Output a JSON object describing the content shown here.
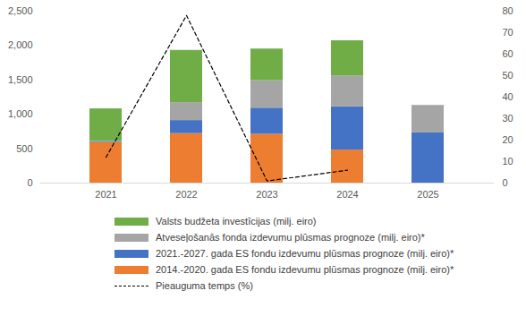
{
  "chart_data": {
    "type": "bar",
    "stacked": true,
    "grid": false,
    "categories": [
      "2021",
      "2022",
      "2023",
      "2024",
      "2025"
    ],
    "ylim": [
      0,
      2500
    ],
    "yticks": [
      0,
      500,
      {
        "value": 1000,
        "label": "1,000"
      },
      {
        "value": 1500,
        "label": "1,500"
      },
      {
        "value": 2000,
        "label": "2,000"
      },
      {
        "value": 2500,
        "label": "2,500"
      }
    ],
    "y2lim": [
      0,
      80
    ],
    "y2ticks": [
      0,
      10,
      20,
      30,
      40,
      50,
      60,
      70,
      80
    ],
    "series": [
      {
        "name": "2014.-2020. gada ES fondu izdevumu plūsmas prognoze (milj. eiro)*",
        "type": "bar",
        "color": "#ED7D31",
        "values": [
          590,
          720,
          710,
          480,
          0
        ]
      },
      {
        "name": "2021.-2027. gada ES fondu izdevumu plūsmas prognoze (milj. eiro)*",
        "type": "bar",
        "color": "#4472C4",
        "values": [
          10,
          190,
          380,
          630,
          730
        ]
      },
      {
        "name": "Atveseļošanās fonda izdevumu plūsmas prognoze (milj. eiro)*",
        "type": "bar",
        "color": "#A5A5A5",
        "values": [
          10,
          260,
          400,
          450,
          400
        ]
      },
      {
        "name": "Valsts budžeta investīcijas (milj. eiro)",
        "type": "bar",
        "color": "#70AD47",
        "values": [
          470,
          760,
          460,
          510,
          0
        ]
      },
      {
        "name": "Pieauguma temps (%)",
        "type": "line",
        "axis": "y2",
        "color": "#000000",
        "line_style": "dashed",
        "values": [
          12,
          78,
          1,
          6,
          null
        ]
      }
    ]
  }
}
